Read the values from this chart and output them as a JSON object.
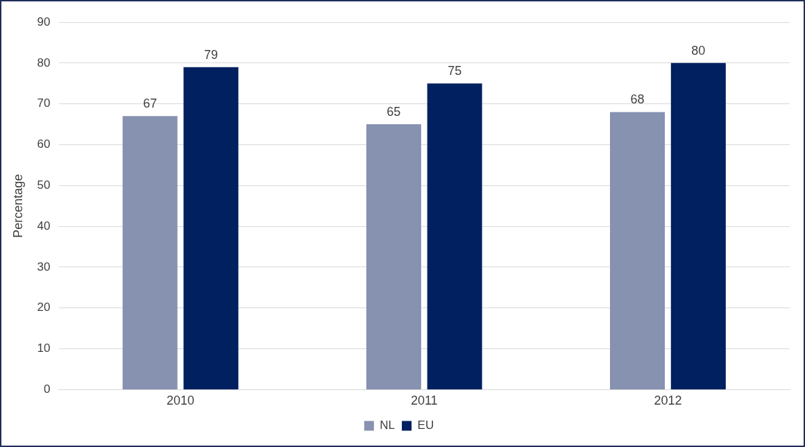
{
  "chart_data": {
    "type": "bar",
    "ylabel": "Percentage",
    "categories": [
      "2010",
      "2011",
      "2012"
    ],
    "series": [
      {
        "name": "NL",
        "color": "#8791b0",
        "values": [
          67,
          65,
          68
        ]
      },
      {
        "name": "EU",
        "color": "#002060",
        "values": [
          79,
          75,
          80
        ]
      }
    ],
    "ylim": [
      0,
      90
    ],
    "yticks": [
      0,
      10,
      20,
      30,
      40,
      50,
      60,
      70,
      80,
      90
    ],
    "grid": "y",
    "legend": "bottom",
    "data_labels": true
  }
}
